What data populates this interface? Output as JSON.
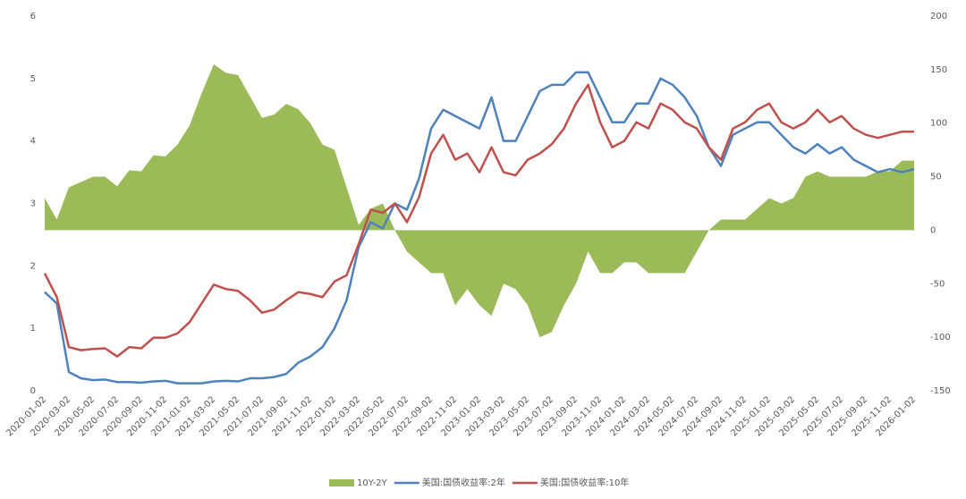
{
  "chart_data": {
    "type": "line",
    "categories": [
      "2020-01-02",
      null,
      "2020-03-02",
      null,
      "2020-05-02",
      null,
      "2020-07-02",
      null,
      "2020-09-02",
      null,
      "2020-11-02",
      null,
      "2021-01-02",
      null,
      "2021-03-02",
      null,
      "2021-05-02",
      null,
      "2021-07-02",
      null,
      "2021-09-02",
      null,
      "2021-11-02",
      null,
      "2022-01-02",
      null,
      "2022-03-02",
      null,
      "2022-05-02",
      null,
      "2022-07-02",
      null,
      "2022-09-02",
      null,
      "2022-11-02",
      null,
      "2023-01-02",
      null,
      "2023-03-02",
      null,
      "2023-05-02",
      null,
      "2023-07-02",
      null,
      "2023-09-02",
      null,
      "2023-11-02",
      null,
      "2024-01-02",
      null,
      "2024-03-02",
      null,
      "2024-05-02",
      null,
      "2024-07-02",
      null,
      "2024-09-02",
      null,
      "2024-11-02",
      null,
      "2025-01-02",
      null,
      "2025-03-02",
      null,
      "2025-05-02",
      null,
      "2025-07-02",
      null,
      "2025-09-02",
      null,
      "2025-11-02",
      null,
      "2026-01-02"
    ],
    "series": [
      {
        "name": "10Y-2Y",
        "type": "area",
        "axis": "y2",
        "color": "#9bbb59",
        "values": [
          30,
          10,
          40,
          45,
          50,
          50,
          41,
          56,
          55,
          70,
          69,
          80,
          98,
          128,
          155,
          147,
          145,
          125,
          105,
          108,
          118,
          113,
          100,
          80,
          75,
          40,
          5,
          20,
          25,
          0,
          -20,
          -30,
          -40,
          -40,
          -70,
          -55,
          -70,
          -80,
          -50,
          -55,
          -70,
          -100,
          -95,
          -70,
          -50,
          -20,
          -40,
          -40,
          -30,
          -30,
          -40,
          -40,
          -40,
          -40,
          -20,
          0,
          10,
          10,
          10,
          20,
          30,
          25,
          30,
          50,
          55,
          50,
          50,
          50,
          50,
          55,
          55,
          65,
          65
        ]
      },
      {
        "name": "美国:国债收益率:2年",
        "type": "line",
        "color": "#4f81bd",
        "values": [
          1.58,
          1.4,
          0.3,
          0.2,
          0.17,
          0.18,
          0.14,
          0.14,
          0.13,
          0.15,
          0.16,
          0.12,
          0.12,
          0.12,
          0.15,
          0.16,
          0.15,
          0.2,
          0.2,
          0.22,
          0.27,
          0.45,
          0.55,
          0.7,
          1.0,
          1.45,
          2.3,
          2.7,
          2.6,
          3.0,
          2.9,
          3.4,
          4.2,
          4.5,
          4.4,
          4.3,
          4.2,
          4.7,
          4.0,
          4.0,
          4.4,
          4.8,
          4.9,
          4.9,
          5.1,
          5.1,
          4.7,
          4.3,
          4.3,
          4.6,
          4.6,
          5.0,
          4.9,
          4.7,
          4.4,
          3.9,
          3.6,
          4.1,
          4.2,
          4.3,
          4.3,
          4.1,
          3.9,
          3.8,
          3.95,
          3.8,
          3.9,
          3.7,
          3.6,
          3.5,
          3.55,
          3.5,
          3.55
        ]
      },
      {
        "name": "美国:国债收益率:10年",
        "type": "line",
        "color": "#c0504d",
        "values": [
          1.88,
          1.5,
          0.7,
          0.65,
          0.67,
          0.68,
          0.55,
          0.7,
          0.68,
          0.85,
          0.85,
          0.92,
          1.1,
          1.4,
          1.7,
          1.63,
          1.6,
          1.45,
          1.25,
          1.3,
          1.45,
          1.58,
          1.55,
          1.5,
          1.75,
          1.85,
          2.35,
          2.9,
          2.85,
          3.0,
          2.7,
          3.1,
          3.8,
          4.1,
          3.7,
          3.8,
          3.5,
          3.9,
          3.5,
          3.45,
          3.7,
          3.8,
          3.95,
          4.2,
          4.6,
          4.9,
          4.3,
          3.9,
          4.0,
          4.3,
          4.2,
          4.6,
          4.5,
          4.3,
          4.2,
          3.9,
          3.7,
          4.2,
          4.3,
          4.5,
          4.6,
          4.3,
          4.2,
          4.3,
          4.5,
          4.3,
          4.4,
          4.2,
          4.1,
          4.05,
          4.1,
          4.15,
          4.15
        ]
      }
    ],
    "ylim": [
      0,
      6
    ],
    "yticks": [
      0,
      1,
      2,
      3,
      4,
      5,
      6
    ],
    "y2lim": [
      -150,
      200
    ],
    "y2ticks": [
      -150,
      -100,
      -50,
      0,
      50,
      100,
      150,
      200
    ],
    "legend": "bottom"
  }
}
